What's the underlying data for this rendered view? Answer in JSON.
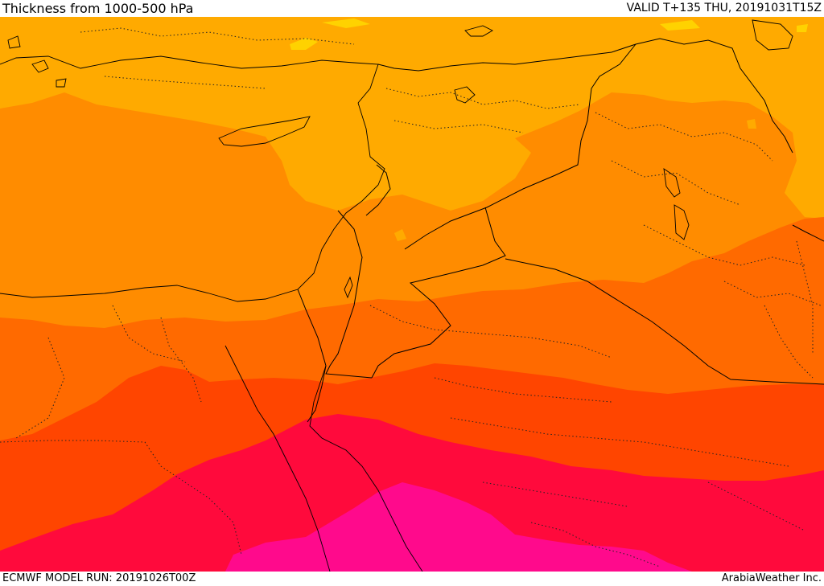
{
  "header": {
    "title": "Thickness from 1000-500 hPa",
    "valid": "VALID T+135 THU, 20191031T15Z"
  },
  "footer": {
    "model_run": "ECMWF MODEL RUN: 20191026T00Z",
    "credit": "ArabiaWeather Inc."
  },
  "map": {
    "field": "thickness-1000-500hPa",
    "band_colors": [
      "#ffd200",
      "#ffaa00",
      "#ff8c00",
      "#ff6a00",
      "#ff4500",
      "#ff0a3c",
      "#ff0a8c"
    ]
  }
}
